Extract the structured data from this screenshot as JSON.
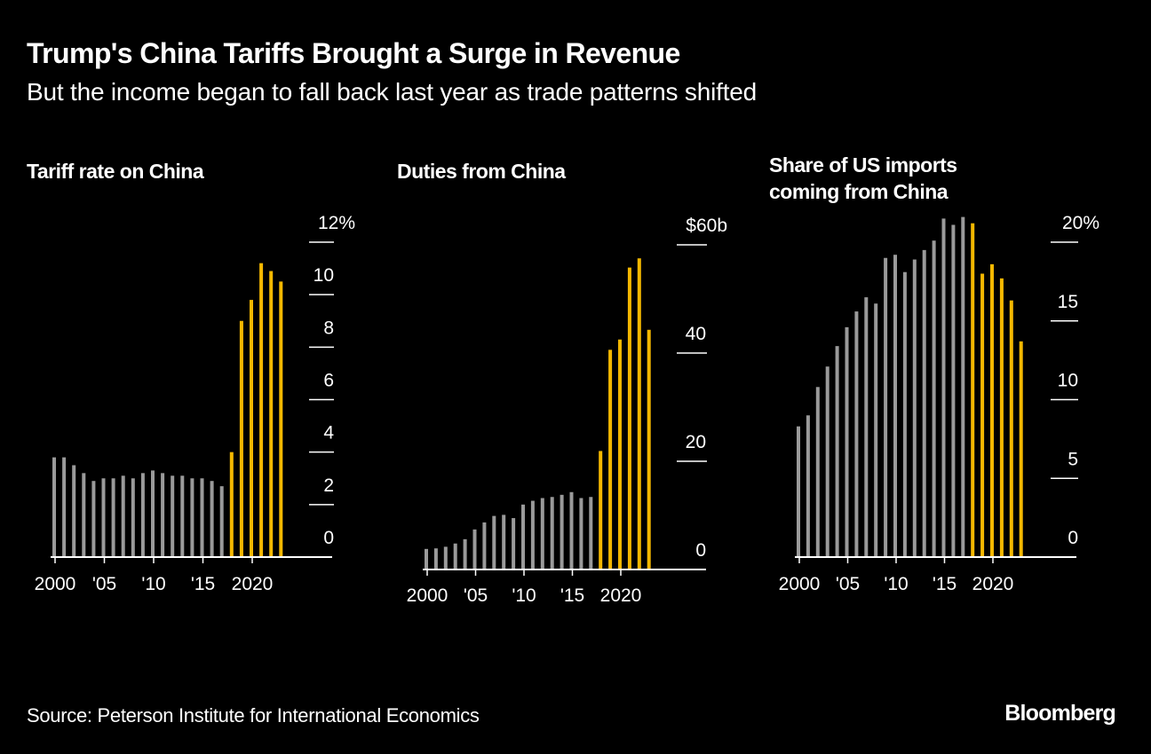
{
  "header": {
    "title": "Trump's China Tariffs Brought a Surge in Revenue",
    "subtitle": "But the income began to fall back last year as trade patterns shifted"
  },
  "footer": {
    "source": "Source: Peterson Institute for International Economics",
    "brand": "Bloomberg"
  },
  "colors": {
    "background": "#000000",
    "pre_tariff_bar": "#9a9a9a",
    "tariff_bar": "#f5b800",
    "text": "#ffffff"
  },
  "chart_data": [
    {
      "type": "bar",
      "title": "Tariff rate on China",
      "title_lines": [
        "Tariff rate on China"
      ],
      "xlabel": "",
      "ylabel": "",
      "x": [
        2000,
        2001,
        2002,
        2003,
        2004,
        2005,
        2006,
        2007,
        2008,
        2009,
        2010,
        2011,
        2012,
        2013,
        2014,
        2015,
        2016,
        2017,
        2018,
        2019,
        2020,
        2021,
        2022,
        2023
      ],
      "values": [
        3.8,
        3.8,
        3.5,
        3.2,
        2.9,
        3.0,
        3.0,
        3.1,
        3.0,
        3.2,
        3.3,
        3.2,
        3.1,
        3.1,
        3.0,
        3.0,
        2.9,
        2.7,
        4.0,
        9.0,
        9.8,
        11.2,
        10.9,
        10.5
      ],
      "highlight_from": 2018,
      "ylim": [
        0,
        12
      ],
      "yticks": [
        0,
        2,
        4,
        6,
        8,
        10,
        12
      ],
      "ytick_labels": [
        "0",
        "2",
        "4",
        "6",
        "8",
        "10",
        "12%"
      ],
      "xticks": [
        2000,
        2005,
        2010,
        2015,
        2020
      ],
      "xtick_labels": [
        "2000",
        "'05",
        "'10",
        "'15",
        "2020"
      ],
      "grid": false,
      "y_axis_side": "right"
    },
    {
      "type": "bar",
      "title": "Duties from China",
      "title_lines": [
        "Duties from China"
      ],
      "xlabel": "",
      "ylabel": "",
      "x": [
        2000,
        2001,
        2002,
        2003,
        2004,
        2005,
        2006,
        2007,
        2008,
        2009,
        2010,
        2011,
        2012,
        2013,
        2014,
        2015,
        2016,
        2017,
        2018,
        2019,
        2020,
        2021,
        2022,
        2023
      ],
      "values": [
        3.8,
        3.9,
        4.2,
        4.8,
        5.6,
        7.4,
        8.7,
        9.9,
        10.1,
        9.5,
        12.0,
        12.7,
        13.2,
        13.4,
        13.8,
        14.3,
        13.2,
        13.4,
        21.9,
        40.6,
        42.5,
        55.8,
        57.5,
        44.3
      ],
      "highlight_from": 2018,
      "ylim": [
        0,
        60
      ],
      "yticks": [
        0,
        20,
        40,
        60
      ],
      "ytick_labels": [
        "0",
        "20",
        "40",
        "$60b"
      ],
      "xticks": [
        2000,
        2005,
        2010,
        2015,
        2020
      ],
      "xtick_labels": [
        "2000",
        "'05",
        "'10",
        "'15",
        "2020"
      ],
      "grid": false,
      "y_axis_side": "right"
    },
    {
      "type": "bar",
      "title": "Share of US imports coming from China",
      "title_lines": [
        "Share of US imports",
        "coming from China"
      ],
      "xlabel": "",
      "ylabel": "",
      "x": [
        2000,
        2001,
        2002,
        2003,
        2004,
        2005,
        2006,
        2007,
        2008,
        2009,
        2010,
        2011,
        2012,
        2013,
        2014,
        2015,
        2016,
        2017,
        2018,
        2019,
        2020,
        2021,
        2022,
        2023
      ],
      "values": [
        8.3,
        9.0,
        10.8,
        12.1,
        13.4,
        14.6,
        15.6,
        16.5,
        16.1,
        19.0,
        19.2,
        18.1,
        18.9,
        19.5,
        20.1,
        21.5,
        21.1,
        21.6,
        21.2,
        18.0,
        18.6,
        17.7,
        16.3,
        13.7
      ],
      "highlight_from": 2018,
      "ylim": [
        0,
        20
      ],
      "yticks": [
        0,
        5,
        10,
        15,
        20
      ],
      "ytick_labels": [
        "0",
        "5",
        "10",
        "15",
        "20%"
      ],
      "xticks": [
        2000,
        2005,
        2010,
        2015,
        2020
      ],
      "xtick_labels": [
        "2000",
        "'05",
        "'10",
        "'15",
        "2020"
      ],
      "grid": false,
      "y_axis_side": "right"
    }
  ]
}
